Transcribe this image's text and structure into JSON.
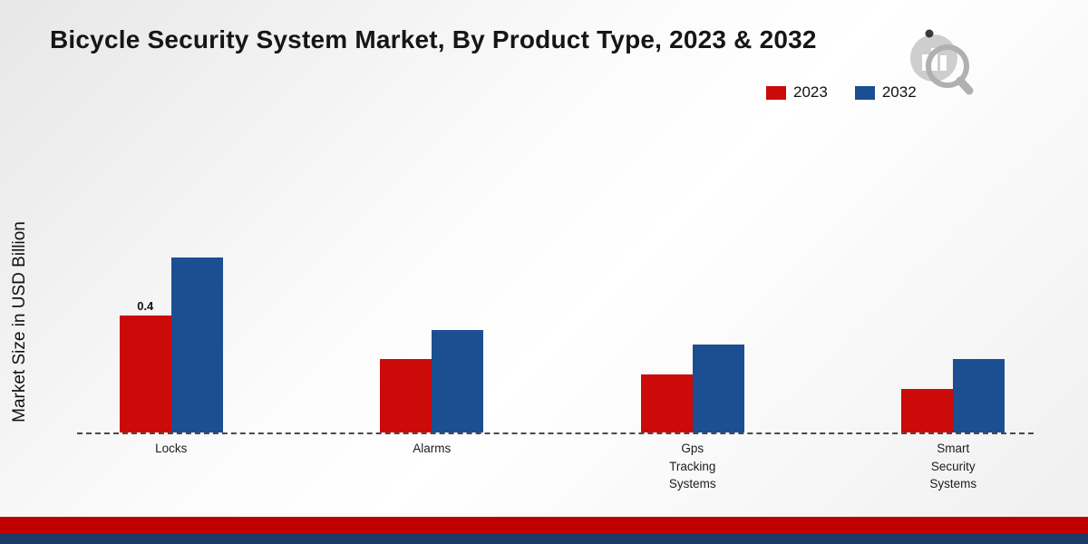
{
  "title": "Bicycle Security System Market, By Product Type, 2023 & 2032",
  "ylabel": "Market Size in USD Billion",
  "legend": {
    "items": [
      {
        "label": "2023",
        "color": "#cc0a0a"
      },
      {
        "label": "2032",
        "color": "#1b4f92"
      }
    ]
  },
  "footer": {
    "red": "#c00000",
    "navy": "#1b3a66"
  },
  "chart_data": {
    "type": "bar",
    "title": "Bicycle Security System Market, By Product Type, 2023 & 2032",
    "categories": [
      "Locks",
      "Alarms",
      "Gps Tracking Systems",
      "Smart Security Systems"
    ],
    "series": [
      {
        "name": "2023",
        "color": "#cc0a0a",
        "values": [
          0.4,
          0.25,
          0.2,
          0.15
        ]
      },
      {
        "name": "2032",
        "color": "#1b4f92",
        "values": [
          0.6,
          0.35,
          0.3,
          0.25
        ]
      }
    ],
    "data_labels": {
      "series_index": 0,
      "values": [
        "0.4",
        "",
        "",
        ""
      ]
    },
    "xlabel": "",
    "ylabel": "Market Size in USD Billion",
    "ylim": [
      0,
      0.7
    ],
    "grid": false,
    "legend_position": "top-right",
    "baseline_style": "dashed"
  }
}
